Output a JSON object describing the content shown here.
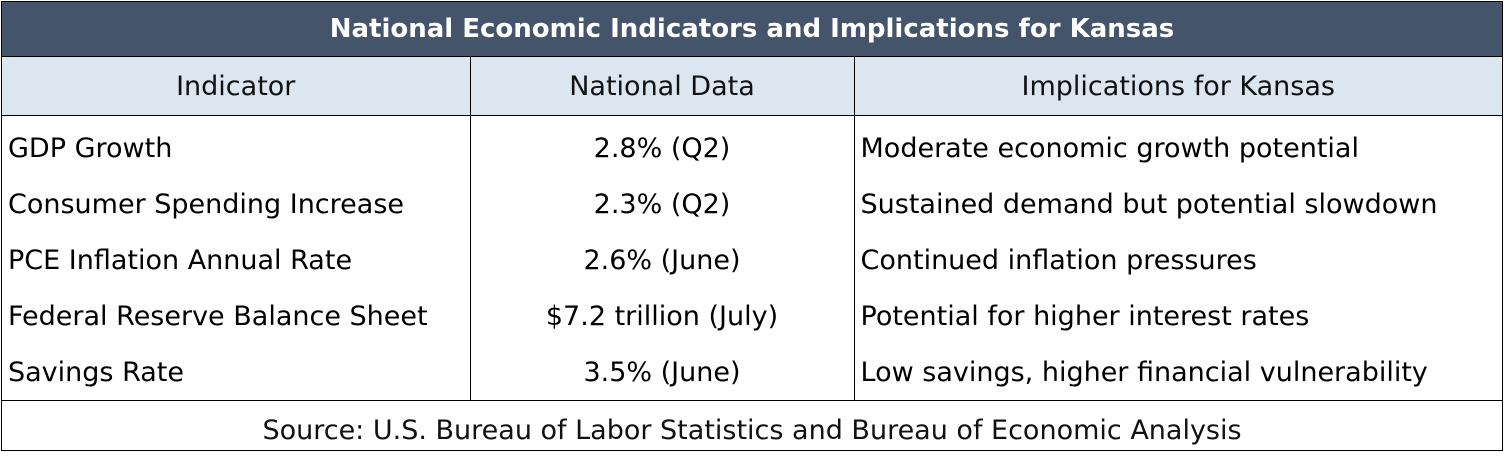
{
  "table": {
    "title": "National Economic Indicators and Implications for Kansas",
    "headers": [
      "Indicator",
      "National Data",
      "Implications for Kansas"
    ],
    "rows": [
      [
        "GDP Growth",
        "2.8% (Q2)",
        "Moderate economic growth potential"
      ],
      [
        "Consumer Spending Increase",
        "2.3% (Q2)",
        "Sustained demand but potential slowdown"
      ],
      [
        "PCE Inflation Annual Rate",
        "2.6% (June)",
        "Continued inflation pressures"
      ],
      [
        "Federal Reserve Balance Sheet",
        "$7.2 trillion (July)",
        "Potential for higher interest rates"
      ],
      [
        "Savings Rate",
        "3.5% (June)",
        "Low savings, higher financial vulnerability"
      ]
    ],
    "source": "Source: U.S. Bureau of Labor Statistics and Bureau of Economic Analysis"
  },
  "colors": {
    "title_bg": "#44546a",
    "header_bg": "#dce6f1"
  }
}
